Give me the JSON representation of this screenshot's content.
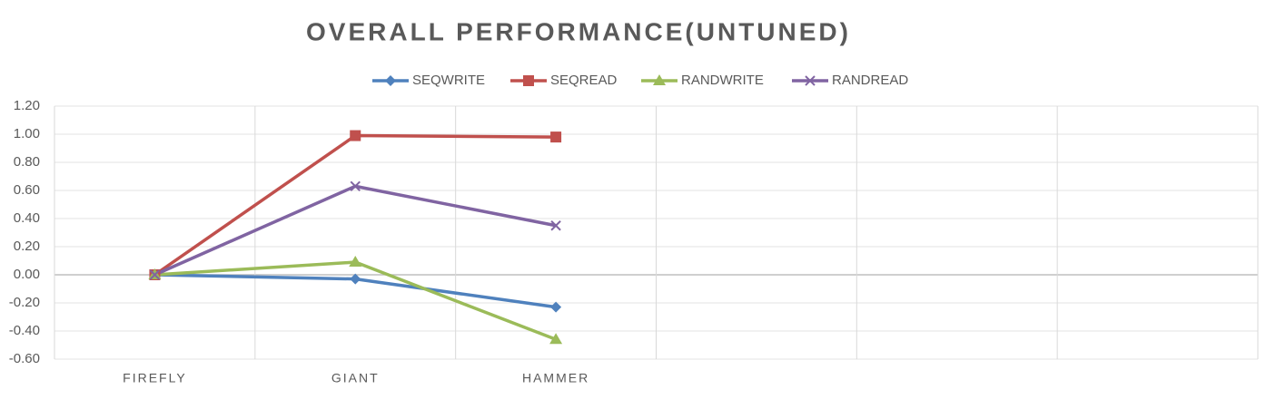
{
  "chart_data": {
    "type": "line",
    "title": "OVERALL PERFORMANCE(UNTUNED)",
    "categories": [
      "FIREFLY",
      "GIANT",
      "HAMMER",
      null,
      null,
      null
    ],
    "series": [
      {
        "name": "SEQWRITE",
        "color": "#4f81bd",
        "marker": "diamond",
        "values": [
          0,
          -0.03,
          -0.23,
          null,
          null,
          null
        ]
      },
      {
        "name": "SEQREAD",
        "color": "#c0504d",
        "marker": "square",
        "values": [
          0,
          0.99,
          0.98,
          null,
          null,
          null
        ]
      },
      {
        "name": "RANDWRITE",
        "color": "#9bbb59",
        "marker": "triangle",
        "values": [
          0,
          0.09,
          -0.46,
          null,
          null,
          null
        ]
      },
      {
        "name": "RANDREAD",
        "color": "#8064a2",
        "marker": "x",
        "values": [
          0,
          0.63,
          0.35,
          null,
          null,
          null
        ]
      }
    ],
    "ylim": [
      -0.6,
      1.2
    ],
    "yticks": [
      {
        "value": 1.2,
        "label": "1.20"
      },
      {
        "value": 1,
        "label": "1.00"
      },
      {
        "value": 0.8,
        "label": "0.80"
      },
      {
        "value": 0.6,
        "label": "0.60"
      },
      {
        "value": 0.4,
        "label": "0.40"
      },
      {
        "value": 0.2,
        "label": "0.20"
      },
      {
        "value": 0,
        "label": "0.00"
      },
      {
        "value": -0.2,
        "label": "-0.20"
      },
      {
        "value": -0.4,
        "label": "-0.40"
      },
      {
        "value": -0.6,
        "label": "-0.60"
      }
    ],
    "grid": true,
    "legend": "top"
  }
}
